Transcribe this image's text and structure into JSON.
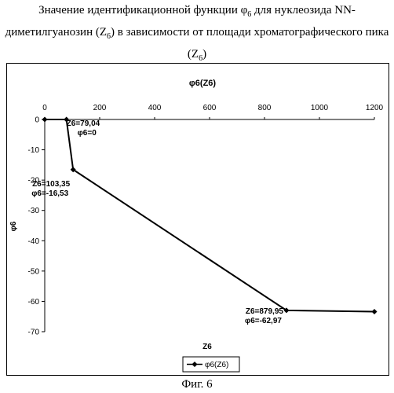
{
  "caption": {
    "line1": "Значение идентификационной функции φ6 для нуклеозида NN-",
    "line2": "диметилгуанозин (Z6) в зависимости от площади хроматографического пика",
    "line3": "(Z6)"
  },
  "figure_label": "Фиг. 6",
  "chart_data": {
    "type": "line",
    "title": "φ6(Z6)",
    "xlabel": "Z6",
    "ylabel": "φ6",
    "x_axis_position": "top",
    "xlim": [
      0,
      1200
    ],
    "ylim": [
      -70,
      0
    ],
    "x_ticks": [
      "0",
      "200",
      "400",
      "600",
      "800",
      "1000",
      "1200"
    ],
    "y_ticks": [
      "0",
      "-10",
      "-20",
      "-30",
      "-40",
      "-50",
      "-60",
      "-70"
    ],
    "grid": false,
    "legend_position": "bottom-left",
    "series": [
      {
        "name": "φ6(Z6)",
        "color": "#000000",
        "marker": "diamond",
        "points": [
          {
            "x": 0,
            "y": 0
          },
          {
            "x": 79.04,
            "y": 0
          },
          {
            "x": 103.35,
            "y": -16.53
          },
          {
            "x": 879.95,
            "y": -62.97
          },
          {
            "x": 1200,
            "y": -63.4
          }
        ]
      }
    ],
    "annotations": [
      {
        "lines": [
          "Z6=79,04",
          "φ6=0"
        ],
        "x": 79.04,
        "y": 0
      },
      {
        "lines": [
          "Z6=103,35",
          "φ6=-16,53"
        ],
        "x": 103.35,
        "y": -16.53
      },
      {
        "lines": [
          "Z6=879,95",
          "φ6=-62,97"
        ],
        "x": 879.95,
        "y": -62.97
      }
    ]
  }
}
